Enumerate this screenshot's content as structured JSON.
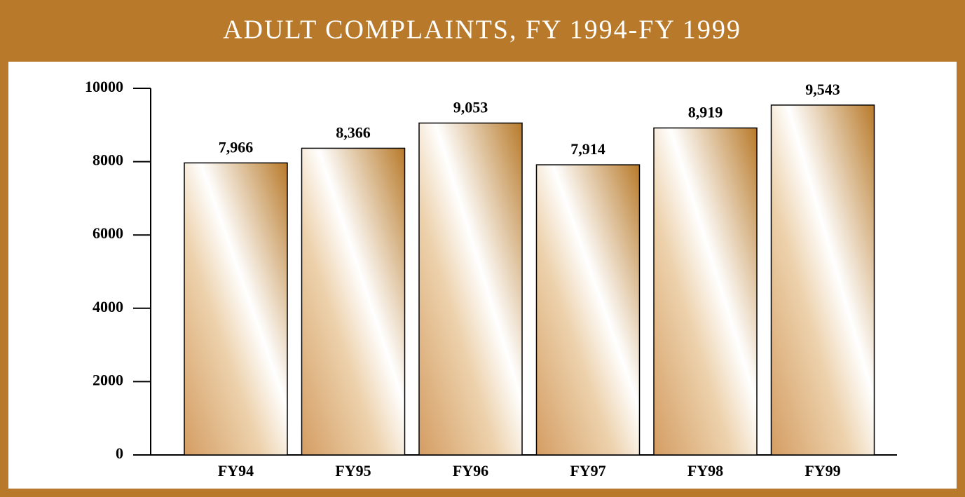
{
  "chart_data": {
    "type": "bar",
    "title": "ADULT COMPLAINTS, FY 1994-FY 1999",
    "categories": [
      "FY94",
      "FY95",
      "FY96",
      "FY97",
      "FY98",
      "FY99"
    ],
    "values": [
      7966,
      8366,
      9053,
      7914,
      8919,
      9543
    ],
    "value_labels": [
      "7,966",
      "8,366",
      "9,053",
      "7,914",
      "8,919",
      "9,543"
    ],
    "color": "#b87a2a",
    "ylim": [
      0,
      10000
    ],
    "yticks": [
      0,
      2000,
      4000,
      6000,
      8000,
      10000
    ],
    "grid": false
  }
}
